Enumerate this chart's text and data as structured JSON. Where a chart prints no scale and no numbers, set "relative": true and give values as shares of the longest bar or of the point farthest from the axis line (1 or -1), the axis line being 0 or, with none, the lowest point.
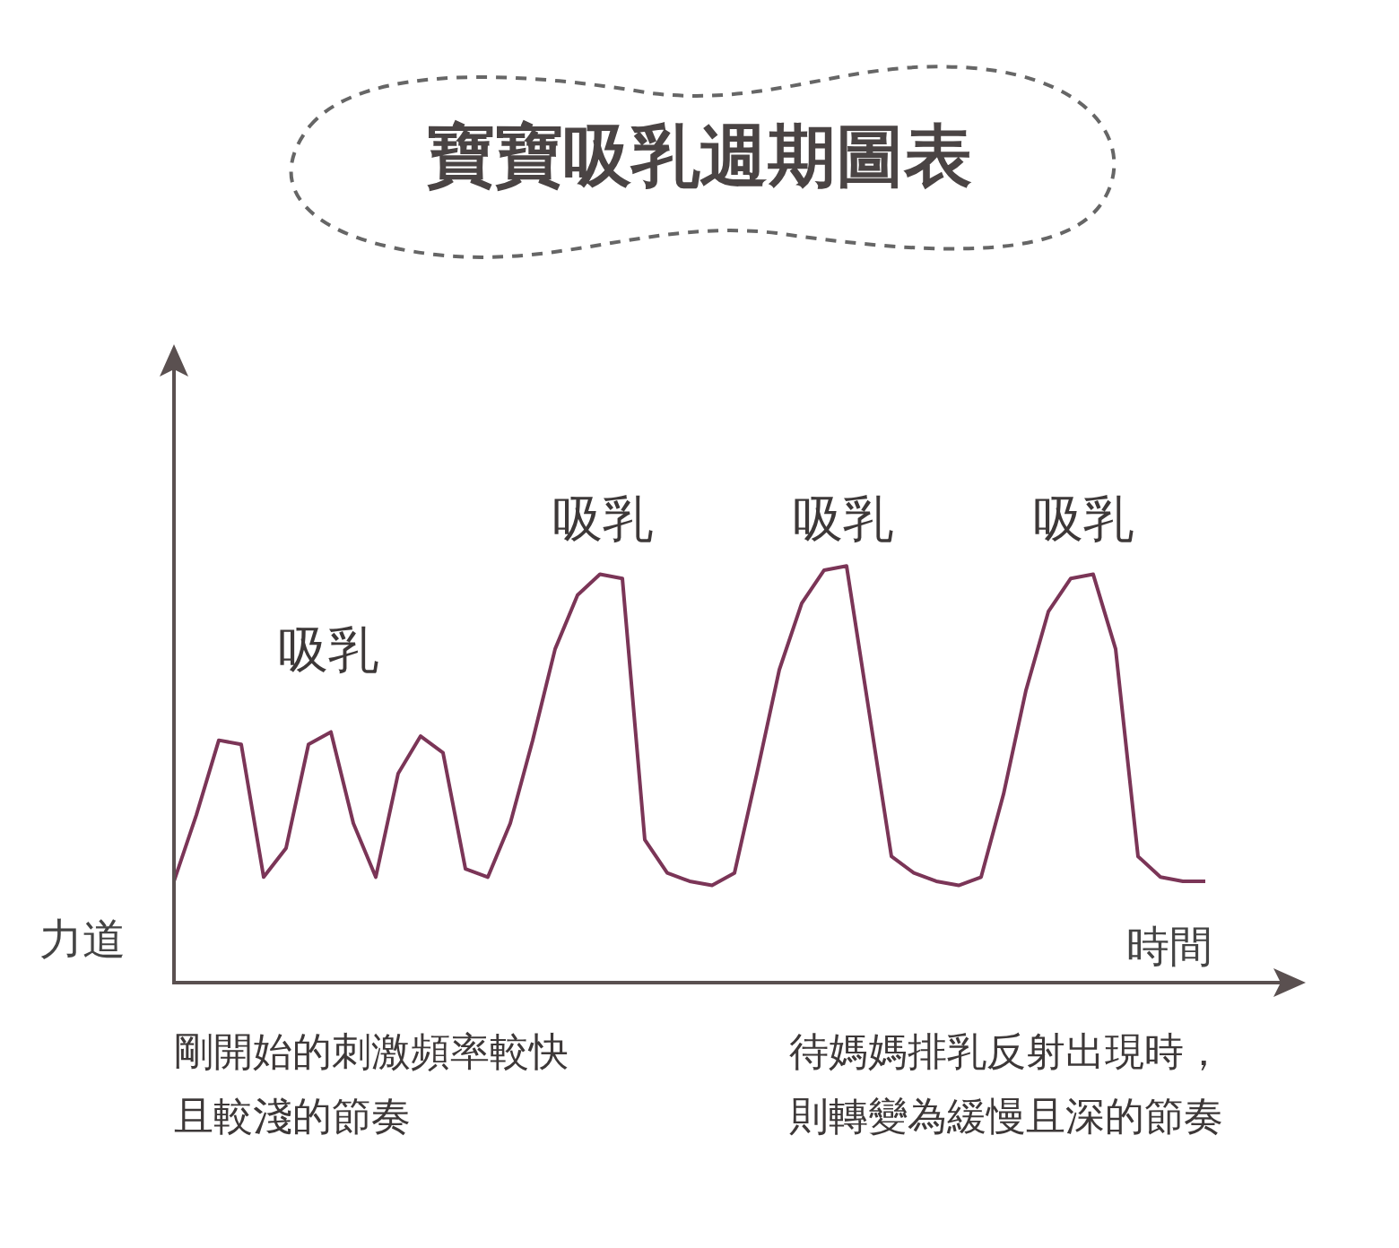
{
  "chart_data": {
    "type": "line",
    "title": "寶寶吸乳週期圖表",
    "xlabel": "時間",
    "ylabel": "力道",
    "relative": true,
    "marker": "none",
    "legend": false,
    "grid": false,
    "categories": [
      null,
      null,
      null,
      null,
      null,
      null,
      null,
      null,
      null,
      null,
      null,
      null,
      null,
      null,
      null,
      null,
      null,
      null,
      null,
      null,
      null,
      null,
      null,
      null,
      null,
      null,
      null,
      null,
      null,
      null,
      null,
      null,
      null,
      null,
      null,
      null,
      null,
      null,
      null,
      null,
      null,
      null,
      null,
      null,
      null,
      null,
      null
    ],
    "series": [
      {
        "color": "#7b3557",
        "values": [
          0.24,
          0.4,
          0.58,
          0.57,
          0.25,
          0.32,
          0.57,
          0.6,
          0.38,
          0.25,
          0.5,
          0.59,
          0.55,
          0.27,
          0.25,
          0.38,
          0.58,
          0.8,
          0.93,
          0.98,
          0.97,
          0.34,
          0.26,
          0.24,
          0.23,
          0.26,
          0.5,
          0.75,
          0.91,
          0.99,
          1,
          0.65,
          0.3,
          0.26,
          0.24,
          0.23,
          0.25,
          0.45,
          0.7,
          0.89,
          0.97,
          0.98,
          0.8,
          0.3,
          0.25,
          0.24,
          0.24
        ]
      }
    ],
    "annotations": [
      "吸乳",
      "吸乳",
      "吸乳",
      "吸乳",
      "剛開始的刺激頻率較快",
      "且較淺的節奏",
      "待媽媽排乳反射出現時，",
      "則轉變為緩慢且深的節奏"
    ]
  }
}
